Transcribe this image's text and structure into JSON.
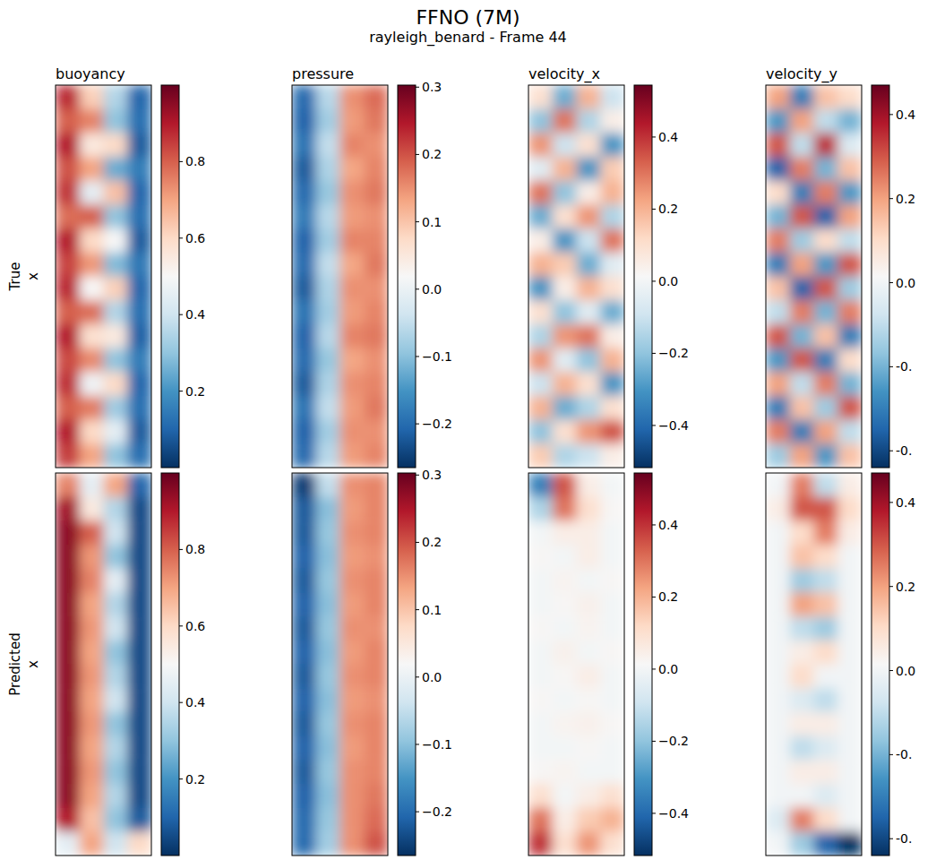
{
  "chart_data": {
    "type": "heatmap",
    "title": "FFNO (7M)",
    "subtitle": "rayleigh_benard - Frame 44",
    "columns": [
      {
        "title": "buoyancy",
        "colorbar": {
          "range": [
            0,
            1
          ],
          "ticks": [
            0.2,
            0.4,
            0.6,
            0.8
          ]
        }
      },
      {
        "title": "pressure",
        "colorbar": {
          "range": [
            -0.265,
            0.303
          ],
          "ticks": [
            {
              "value": -0.2,
              "label": "−0.2"
            },
            {
              "value": -0.1,
              "label": "−0.1"
            },
            {
              "value": 0,
              "label": "0.0"
            },
            0.1,
            0.2,
            0.3
          ]
        }
      },
      {
        "title": "velocity_x",
        "colorbar": {
          "range": [
            -0.517,
            0.544
          ],
          "ticks": [
            {
              "value": -0.4,
              "label": "−0.4"
            },
            {
              "value": -0.2,
              "label": "−0.2"
            },
            {
              "value": 0,
              "label": "0.0"
            },
            0.2,
            0.4
          ]
        }
      },
      {
        "title": "velocity_y",
        "colorbar": {
          "range": [
            -0.44,
            0.47
          ],
          "ticks": [
            {
              "value": -0.4,
              "label": "-0."
            },
            {
              "value": -0.2,
              "label": "-0."
            },
            {
              "value": 0,
              "label": "0.0"
            },
            0.2,
            0.4
          ]
        }
      }
    ],
    "rows": [
      {
        "label": [
          "True",
          "x"
        ],
        "fields": [
          [
            [
              0.88,
              0.62,
              0.35,
              0.1
            ],
            [
              0.8,
              0.75,
              0.3,
              0.12
            ],
            [
              0.9,
              0.55,
              0.6,
              0.08
            ],
            [
              0.82,
              0.7,
              0.25,
              0.15
            ],
            [
              0.86,
              0.45,
              0.65,
              0.1
            ],
            [
              0.78,
              0.8,
              0.3,
              0.12
            ],
            [
              0.9,
              0.6,
              0.5,
              0.08
            ],
            [
              0.84,
              0.72,
              0.28,
              0.14
            ],
            [
              0.88,
              0.5,
              0.62,
              0.1
            ],
            [
              0.8,
              0.78,
              0.35,
              0.12
            ],
            [
              0.9,
              0.58,
              0.55,
              0.09
            ],
            [
              0.83,
              0.74,
              0.3,
              0.15
            ],
            [
              0.87,
              0.48,
              0.6,
              0.1
            ],
            [
              0.8,
              0.76,
              0.32,
              0.12
            ],
            [
              0.9,
              0.6,
              0.45,
              0.08
            ],
            [
              0.85,
              0.7,
              0.3,
              0.12
            ]
          ],
          [
            [
              -0.2,
              -0.06,
              0.15,
              0.18
            ],
            [
              -0.21,
              -0.08,
              0.14,
              0.17
            ],
            [
              -0.19,
              -0.05,
              0.16,
              0.15
            ],
            [
              -0.22,
              -0.07,
              0.13,
              0.16
            ],
            [
              -0.2,
              -0.09,
              0.15,
              0.17
            ],
            [
              -0.18,
              -0.06,
              0.14,
              0.15
            ],
            [
              -0.21,
              -0.08,
              0.16,
              0.16
            ],
            [
              -0.2,
              -0.05,
              0.13,
              0.17
            ],
            [
              -0.22,
              -0.07,
              0.15,
              0.15
            ],
            [
              -0.19,
              -0.08,
              0.14,
              0.16
            ],
            [
              -0.21,
              -0.06,
              0.16,
              0.17
            ],
            [
              -0.2,
              -0.09,
              0.13,
              0.15
            ],
            [
              -0.22,
              -0.07,
              0.15,
              0.16
            ],
            [
              -0.19,
              -0.05,
              0.14,
              0.17
            ],
            [
              -0.21,
              -0.08,
              0.15,
              0.15
            ],
            [
              -0.2,
              -0.06,
              0.14,
              0.16
            ]
          ],
          [
            [
              0.1,
              -0.25,
              0.2,
              -0.1
            ],
            [
              -0.2,
              0.3,
              -0.15,
              0.05
            ],
            [
              0.25,
              -0.1,
              0.1,
              -0.3
            ],
            [
              -0.05,
              0.2,
              -0.3,
              0.15
            ],
            [
              0.3,
              -0.2,
              0.05,
              0.2
            ],
            [
              -0.25,
              0.1,
              0.25,
              -0.15
            ],
            [
              0.05,
              -0.3,
              -0.1,
              0.3
            ],
            [
              0.2,
              0.15,
              -0.25,
              -0.05
            ],
            [
              -0.3,
              0.05,
              0.2,
              0.1
            ],
            [
              0.1,
              -0.2,
              -0.05,
              -0.25
            ],
            [
              -0.15,
              0.25,
              0.3,
              0.05
            ],
            [
              0.25,
              -0.05,
              -0.2,
              0.2
            ],
            [
              -0.1,
              0.2,
              0.1,
              -0.3
            ],
            [
              0.2,
              -0.25,
              -0.15,
              0.1
            ],
            [
              -0.2,
              0.1,
              0.25,
              0.35
            ],
            [
              0.15,
              -0.15,
              -0.1,
              0.05
            ]
          ],
          [
            [
              0.2,
              -0.3,
              0.15,
              0.1
            ],
            [
              -0.25,
              0.2,
              -0.1,
              -0.2
            ],
            [
              0.3,
              -0.1,
              0.35,
              -0.05
            ],
            [
              -0.35,
              0.25,
              -0.2,
              0.15
            ],
            [
              0.1,
              -0.3,
              0.25,
              -0.25
            ],
            [
              -0.2,
              0.3,
              -0.35,
              0.2
            ],
            [
              0.25,
              -0.15,
              0.1,
              -0.1
            ],
            [
              -0.3,
              0.2,
              -0.25,
              0.3
            ],
            [
              0.15,
              -0.35,
              0.3,
              -0.15
            ],
            [
              -0.1,
              0.25,
              -0.2,
              0.25
            ],
            [
              0.3,
              -0.2,
              0.15,
              -0.3
            ],
            [
              -0.25,
              0.3,
              -0.3,
              0.1
            ],
            [
              0.2,
              -0.1,
              0.25,
              -0.2
            ],
            [
              -0.3,
              0.15,
              -0.15,
              0.3
            ],
            [
              0.25,
              -0.3,
              0.2,
              -0.1
            ],
            [
              -0.15,
              0.2,
              -0.25,
              0.15
            ]
          ]
        ]
      },
      {
        "label": [
          "Predicted",
          "x"
        ],
        "fields": [
          [
            [
              0.75,
              0.45,
              0.7,
              0.1
            ],
            [
              0.92,
              0.55,
              0.35,
              0.05
            ],
            [
              0.95,
              0.8,
              0.4,
              0.05
            ],
            [
              0.95,
              0.72,
              0.3,
              0.05
            ],
            [
              0.95,
              0.75,
              0.45,
              0.05
            ],
            [
              0.95,
              0.7,
              0.35,
              0.05
            ],
            [
              0.95,
              0.72,
              0.4,
              0.05
            ],
            [
              0.95,
              0.7,
              0.3,
              0.05
            ],
            [
              0.95,
              0.72,
              0.35,
              0.05
            ],
            [
              0.95,
              0.7,
              0.4,
              0.05
            ],
            [
              0.95,
              0.72,
              0.3,
              0.05
            ],
            [
              0.95,
              0.7,
              0.35,
              0.05
            ],
            [
              0.95,
              0.72,
              0.3,
              0.05
            ],
            [
              0.95,
              0.7,
              0.35,
              0.05
            ],
            [
              0.9,
              0.65,
              0.3,
              0.08
            ],
            [
              0.45,
              0.7,
              0.4,
              0.6
            ]
          ],
          [
            [
              -0.25,
              -0.05,
              0.15,
              0.16
            ],
            [
              -0.22,
              -0.1,
              0.14,
              0.16
            ],
            [
              -0.22,
              -0.09,
              0.15,
              0.16
            ],
            [
              -0.21,
              -0.1,
              0.14,
              0.15
            ],
            [
              -0.22,
              -0.09,
              0.15,
              0.16
            ],
            [
              -0.21,
              -0.1,
              0.14,
              0.16
            ],
            [
              -0.22,
              -0.09,
              0.15,
              0.15
            ],
            [
              -0.21,
              -0.1,
              0.14,
              0.16
            ],
            [
              -0.22,
              -0.09,
              0.15,
              0.16
            ],
            [
              -0.21,
              -0.1,
              0.14,
              0.15
            ],
            [
              -0.22,
              -0.09,
              0.15,
              0.16
            ],
            [
              -0.21,
              -0.1,
              0.14,
              0.16
            ],
            [
              -0.22,
              -0.09,
              0.15,
              0.16
            ],
            [
              -0.21,
              -0.1,
              0.15,
              0.17
            ],
            [
              -0.2,
              -0.09,
              0.15,
              0.18
            ],
            [
              -0.2,
              -0.08,
              0.15,
              0.2
            ]
          ],
          [
            [
              -0.35,
              0.35,
              0.05,
              0.0
            ],
            [
              -0.15,
              0.3,
              0.1,
              0.02
            ],
            [
              0.0,
              0.05,
              0.05,
              0.0
            ],
            [
              0.02,
              0.0,
              0.05,
              0.0
            ],
            [
              0.0,
              0.03,
              0.0,
              0.02
            ],
            [
              0.0,
              0.02,
              0.04,
              0.0
            ],
            [
              0.02,
              0.0,
              0.03,
              0.0
            ],
            [
              0.0,
              0.04,
              0.0,
              0.02
            ],
            [
              0.0,
              0.02,
              0.05,
              0.0
            ],
            [
              0.02,
              0.0,
              0.02,
              0.0
            ],
            [
              0.0,
              0.03,
              0.04,
              0.02
            ],
            [
              0.0,
              0.0,
              0.02,
              0.0
            ],
            [
              0.02,
              0.03,
              0.0,
              0.0
            ],
            [
              0.1,
              0.0,
              0.05,
              0.1
            ],
            [
              0.3,
              0.05,
              0.15,
              0.2
            ],
            [
              0.4,
              0.1,
              0.25,
              0.1
            ]
          ],
          [
            [
              0.0,
              0.25,
              -0.1,
              0.05
            ],
            [
              0.05,
              0.3,
              0.3,
              0.1
            ],
            [
              0.0,
              0.1,
              0.25,
              0.05
            ],
            [
              0.0,
              0.15,
              0.1,
              0.0
            ],
            [
              0.0,
              -0.15,
              -0.1,
              0.0
            ],
            [
              0.0,
              0.2,
              0.15,
              0.0
            ],
            [
              0.0,
              -0.1,
              -0.15,
              0.0
            ],
            [
              0.0,
              0.05,
              0.1,
              0.0
            ],
            [
              0.0,
              0.1,
              0.0,
              0.0
            ],
            [
              0.0,
              -0.05,
              -0.1,
              0.0
            ],
            [
              0.0,
              0.05,
              0.05,
              0.0
            ],
            [
              0.0,
              -0.1,
              -0.05,
              0.0
            ],
            [
              0.0,
              0.05,
              0.05,
              0.0
            ],
            [
              0.0,
              0.0,
              -0.05,
              0.0
            ],
            [
              -0.05,
              0.25,
              0.1,
              0.0
            ],
            [
              0.0,
              -0.15,
              -0.35,
              -0.45
            ]
          ]
        ]
      }
    ]
  }
}
